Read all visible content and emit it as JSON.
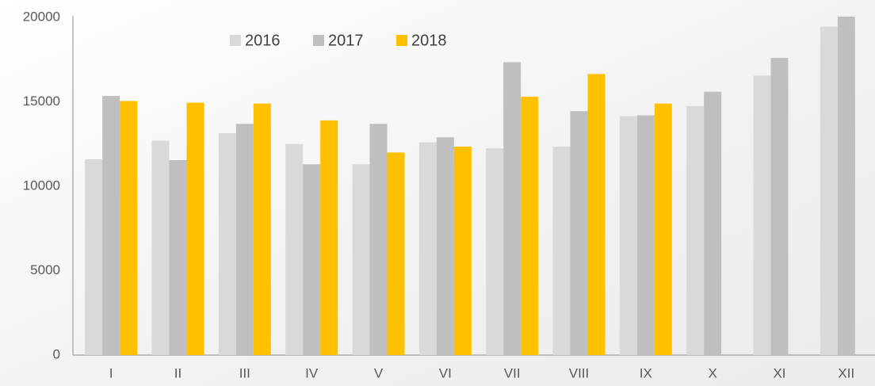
{
  "chart_data": {
    "type": "bar",
    "categories": [
      "I",
      "II",
      "III",
      "IV",
      "V",
      "VI",
      "VII",
      "VIII",
      "IX",
      "X",
      "XI",
      "XII"
    ],
    "series": [
      {
        "name": "2016",
        "color": "#d9d9d9",
        "values": [
          11600,
          12700,
          13150,
          12500,
          11300,
          12600,
          12250,
          12350,
          14150,
          14750,
          16550,
          19450
        ]
      },
      {
        "name": "2017",
        "color": "#bfbfbf",
        "values": [
          15350,
          11550,
          13700,
          11300,
          13700,
          12900,
          17350,
          14450,
          14200,
          15600,
          17600,
          20050
        ]
      },
      {
        "name": "2018",
        "color": "#ffc000",
        "values": [
          15050,
          14950,
          14900,
          13900,
          12000,
          12350,
          15300,
          16650,
          14900,
          null,
          null,
          null
        ]
      }
    ],
    "ylim": [
      0,
      20000
    ],
    "yticks": [
      0,
      5000,
      10000,
      15000,
      20000
    ],
    "grid": false,
    "legend": "top"
  }
}
